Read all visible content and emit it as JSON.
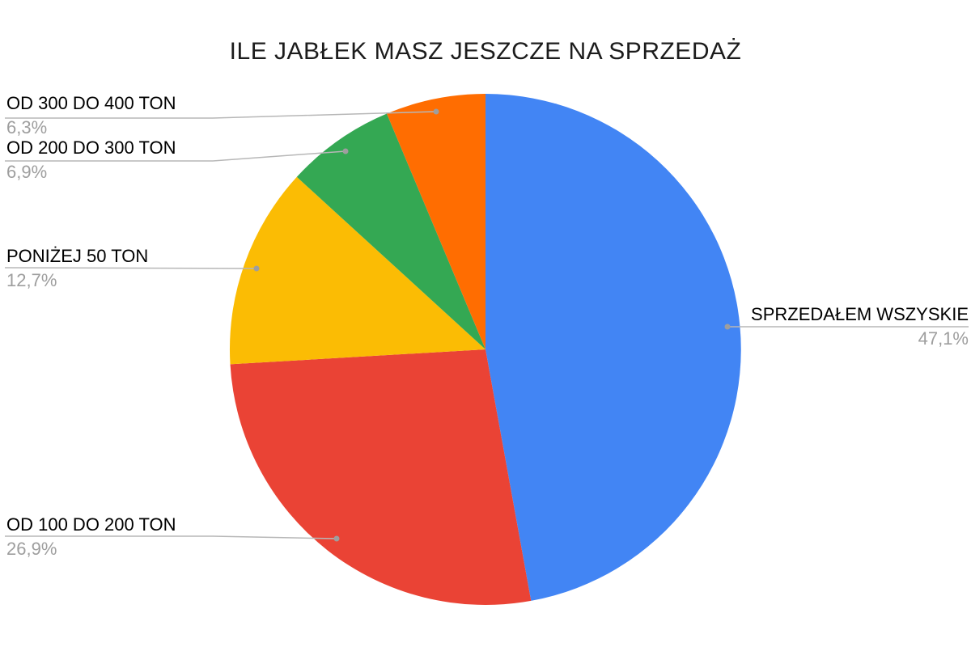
{
  "chart_data": {
    "type": "pie",
    "title": "ILE JABŁEK MASZ JESZCZE NA SPRZEDAŻ",
    "legend_position": "none",
    "label_style": "callout-with-leader-line",
    "start_angle_deg": 0,
    "direction": "clockwise",
    "background_color": "#ffffff",
    "callout_label_color": "#000000",
    "callout_pct_color": "#9e9e9e",
    "leader_line_color": "#b7b7b7",
    "slices": [
      {
        "label": "SPRZEDAŁEM WSZYSKIE",
        "value": 47.1,
        "pct_label": "47,1%",
        "color": "#4285F4"
      },
      {
        "label": "OD 100 DO 200 TON",
        "value": 26.9,
        "pct_label": "26,9%",
        "color": "#EA4335"
      },
      {
        "label": "PONIŻEJ 50 TON",
        "value": 12.7,
        "pct_label": "12,7%",
        "color": "#FBBC04"
      },
      {
        "label": "OD 200 DO 300 TON",
        "value": 6.9,
        "pct_label": "6,9%",
        "color": "#34A853"
      },
      {
        "label": "OD 300 DO 400 TON",
        "value": 6.3,
        "pct_label": "6,3%",
        "color": "#FF6D01"
      }
    ]
  }
}
